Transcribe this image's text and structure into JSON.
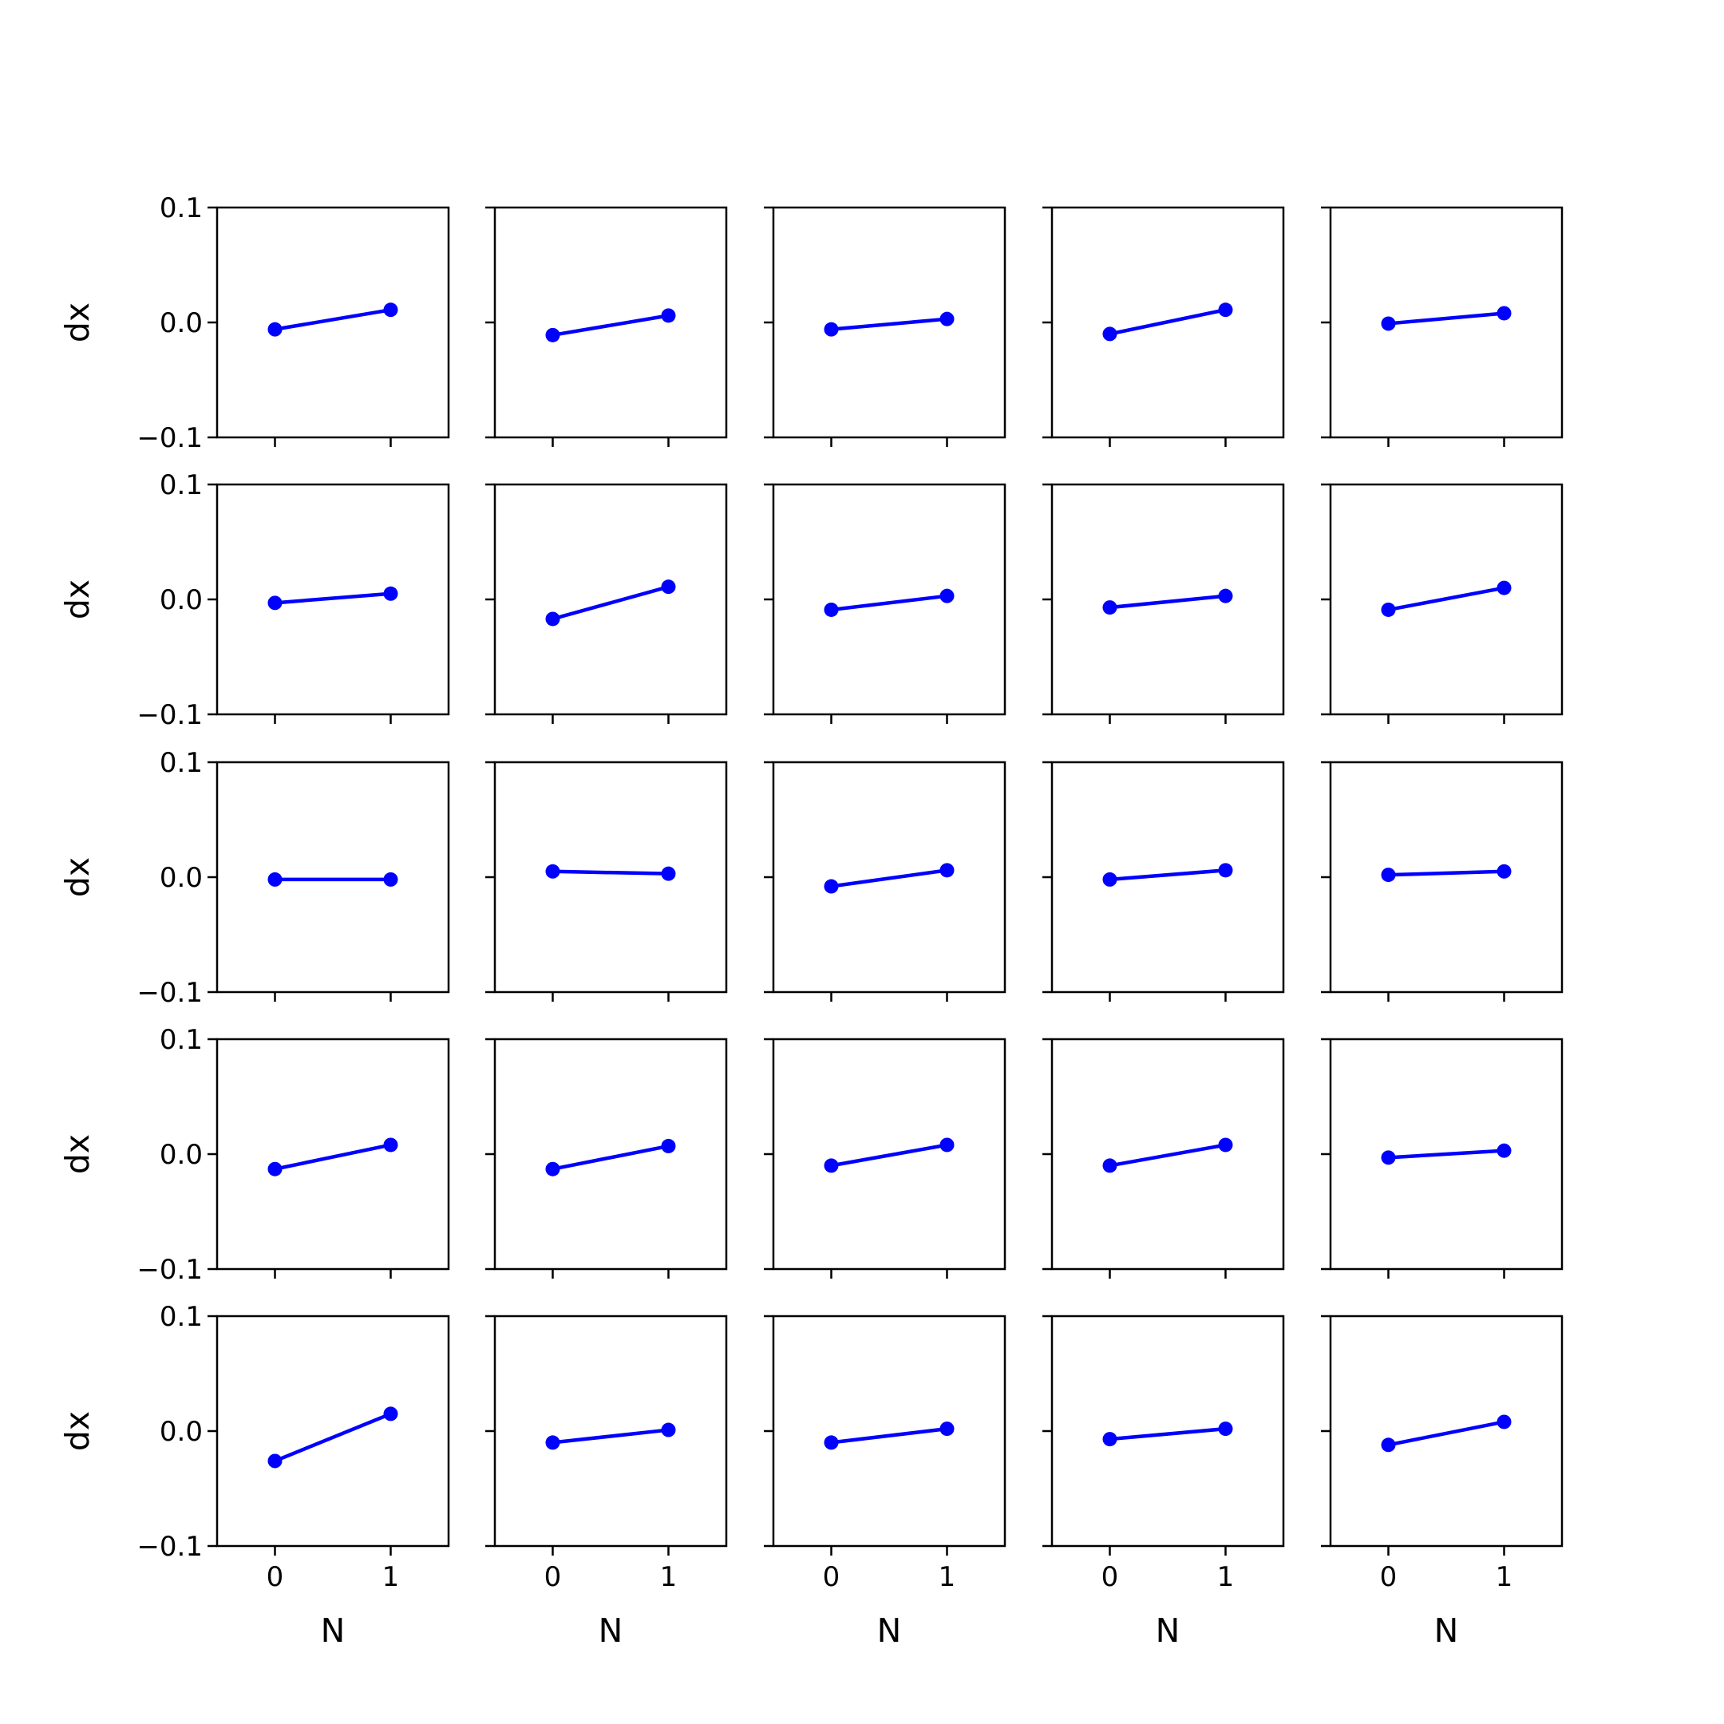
{
  "figure": {
    "rows": 5,
    "cols": 5,
    "series_color": "#0000ff"
  },
  "chart_data": [
    {
      "type": "line",
      "row": 0,
      "col": 0,
      "x": [
        0,
        1
      ],
      "y": [
        -0.006,
        0.011
      ],
      "xlabel": "",
      "ylabel": "dx",
      "xlim": [
        -0.5,
        1.5
      ],
      "ylim": [
        -0.1,
        0.1
      ],
      "xticks": [
        "0",
        "1"
      ],
      "yticks": [
        "0.1",
        "0.0",
        "−0.1"
      ]
    },
    {
      "type": "line",
      "row": 0,
      "col": 1,
      "x": [
        0,
        1
      ],
      "y": [
        -0.011,
        0.006
      ],
      "xlabel": "",
      "ylabel": "",
      "xlim": [
        -0.5,
        1.5
      ],
      "ylim": [
        -0.1,
        0.1
      ],
      "xticks": [
        "0",
        "1"
      ],
      "yticks": []
    },
    {
      "type": "line",
      "row": 0,
      "col": 2,
      "x": [
        0,
        1
      ],
      "y": [
        -0.006,
        0.003
      ],
      "xlabel": "",
      "ylabel": "",
      "xlim": [
        -0.5,
        1.5
      ],
      "ylim": [
        -0.1,
        0.1
      ],
      "xticks": [
        "0",
        "1"
      ],
      "yticks": []
    },
    {
      "type": "line",
      "row": 0,
      "col": 3,
      "x": [
        0,
        1
      ],
      "y": [
        -0.01,
        0.011
      ],
      "xlabel": "",
      "ylabel": "",
      "xlim": [
        -0.5,
        1.5
      ],
      "ylim": [
        -0.1,
        0.1
      ],
      "xticks": [
        "0",
        "1"
      ],
      "yticks": []
    },
    {
      "type": "line",
      "row": 0,
      "col": 4,
      "x": [
        0,
        1
      ],
      "y": [
        -0.001,
        0.008
      ],
      "xlabel": "",
      "ylabel": "",
      "xlim": [
        -0.5,
        1.5
      ],
      "ylim": [
        -0.1,
        0.1
      ],
      "xticks": [
        "0",
        "1"
      ],
      "yticks": []
    },
    {
      "type": "line",
      "row": 1,
      "col": 0,
      "x": [
        0,
        1
      ],
      "y": [
        -0.003,
        0.005
      ],
      "xlabel": "",
      "ylabel": "dx",
      "xlim": [
        -0.5,
        1.5
      ],
      "ylim": [
        -0.1,
        0.1
      ],
      "xticks": [
        "0",
        "1"
      ],
      "yticks": [
        "0.1",
        "0.0",
        "−0.1"
      ]
    },
    {
      "type": "line",
      "row": 1,
      "col": 1,
      "x": [
        0,
        1
      ],
      "y": [
        -0.017,
        0.011
      ],
      "xlabel": "",
      "ylabel": "",
      "xlim": [
        -0.5,
        1.5
      ],
      "ylim": [
        -0.1,
        0.1
      ],
      "xticks": [
        "0",
        "1"
      ],
      "yticks": []
    },
    {
      "type": "line",
      "row": 1,
      "col": 2,
      "x": [
        0,
        1
      ],
      "y": [
        -0.009,
        0.003
      ],
      "xlabel": "",
      "ylabel": "",
      "xlim": [
        -0.5,
        1.5
      ],
      "ylim": [
        -0.1,
        0.1
      ],
      "xticks": [
        "0",
        "1"
      ],
      "yticks": []
    },
    {
      "type": "line",
      "row": 1,
      "col": 3,
      "x": [
        0,
        1
      ],
      "y": [
        -0.007,
        0.003
      ],
      "xlabel": "",
      "ylabel": "",
      "xlim": [
        -0.5,
        1.5
      ],
      "ylim": [
        -0.1,
        0.1
      ],
      "xticks": [
        "0",
        "1"
      ],
      "yticks": []
    },
    {
      "type": "line",
      "row": 1,
      "col": 4,
      "x": [
        0,
        1
      ],
      "y": [
        -0.009,
        0.01
      ],
      "xlabel": "",
      "ylabel": "",
      "xlim": [
        -0.5,
        1.5
      ],
      "ylim": [
        -0.1,
        0.1
      ],
      "xticks": [
        "0",
        "1"
      ],
      "yticks": []
    },
    {
      "type": "line",
      "row": 2,
      "col": 0,
      "x": [
        0,
        1
      ],
      "y": [
        -0.002,
        -0.002
      ],
      "xlabel": "",
      "ylabel": "dx",
      "xlim": [
        -0.5,
        1.5
      ],
      "ylim": [
        -0.1,
        0.1
      ],
      "xticks": [
        "0",
        "1"
      ],
      "yticks": [
        "0.1",
        "0.0",
        "−0.1"
      ]
    },
    {
      "type": "line",
      "row": 2,
      "col": 1,
      "x": [
        0,
        1
      ],
      "y": [
        0.005,
        0.003
      ],
      "xlabel": "",
      "ylabel": "",
      "xlim": [
        -0.5,
        1.5
      ],
      "ylim": [
        -0.1,
        0.1
      ],
      "xticks": [
        "0",
        "1"
      ],
      "yticks": []
    },
    {
      "type": "line",
      "row": 2,
      "col": 2,
      "x": [
        0,
        1
      ],
      "y": [
        -0.008,
        0.006
      ],
      "xlabel": "",
      "ylabel": "",
      "xlim": [
        -0.5,
        1.5
      ],
      "ylim": [
        -0.1,
        0.1
      ],
      "xticks": [
        "0",
        "1"
      ],
      "yticks": []
    },
    {
      "type": "line",
      "row": 2,
      "col": 3,
      "x": [
        0,
        1
      ],
      "y": [
        -0.002,
        0.006
      ],
      "xlabel": "",
      "ylabel": "",
      "xlim": [
        -0.5,
        1.5
      ],
      "ylim": [
        -0.1,
        0.1
      ],
      "xticks": [
        "0",
        "1"
      ],
      "yticks": []
    },
    {
      "type": "line",
      "row": 2,
      "col": 4,
      "x": [
        0,
        1
      ],
      "y": [
        0.002,
        0.005
      ],
      "xlabel": "",
      "ylabel": "",
      "xlim": [
        -0.5,
        1.5
      ],
      "ylim": [
        -0.1,
        0.1
      ],
      "xticks": [
        "0",
        "1"
      ],
      "yticks": []
    },
    {
      "type": "line",
      "row": 3,
      "col": 0,
      "x": [
        0,
        1
      ],
      "y": [
        -0.013,
        0.008
      ],
      "xlabel": "",
      "ylabel": "dx",
      "xlim": [
        -0.5,
        1.5
      ],
      "ylim": [
        -0.1,
        0.1
      ],
      "xticks": [
        "0",
        "1"
      ],
      "yticks": [
        "0.1",
        "0.0",
        "−0.1"
      ]
    },
    {
      "type": "line",
      "row": 3,
      "col": 1,
      "x": [
        0,
        1
      ],
      "y": [
        -0.013,
        0.007
      ],
      "xlabel": "",
      "ylabel": "",
      "xlim": [
        -0.5,
        1.5
      ],
      "ylim": [
        -0.1,
        0.1
      ],
      "xticks": [
        "0",
        "1"
      ],
      "yticks": []
    },
    {
      "type": "line",
      "row": 3,
      "col": 2,
      "x": [
        0,
        1
      ],
      "y": [
        -0.01,
        0.008
      ],
      "xlabel": "",
      "ylabel": "",
      "xlim": [
        -0.5,
        1.5
      ],
      "ylim": [
        -0.1,
        0.1
      ],
      "xticks": [
        "0",
        "1"
      ],
      "yticks": []
    },
    {
      "type": "line",
      "row": 3,
      "col": 3,
      "x": [
        0,
        1
      ],
      "y": [
        -0.01,
        0.008
      ],
      "xlabel": "",
      "ylabel": "",
      "xlim": [
        -0.5,
        1.5
      ],
      "ylim": [
        -0.1,
        0.1
      ],
      "xticks": [
        "0",
        "1"
      ],
      "yticks": []
    },
    {
      "type": "line",
      "row": 3,
      "col": 4,
      "x": [
        0,
        1
      ],
      "y": [
        -0.003,
        0.003
      ],
      "xlabel": "",
      "ylabel": "",
      "xlim": [
        -0.5,
        1.5
      ],
      "ylim": [
        -0.1,
        0.1
      ],
      "xticks": [
        "0",
        "1"
      ],
      "yticks": []
    },
    {
      "type": "line",
      "row": 4,
      "col": 0,
      "x": [
        0,
        1
      ],
      "y": [
        -0.026,
        0.015
      ],
      "xlabel": "N",
      "ylabel": "dx",
      "xlim": [
        -0.5,
        1.5
      ],
      "ylim": [
        -0.1,
        0.1
      ],
      "xticks": [
        "0",
        "1"
      ],
      "yticks": [
        "0.1",
        "0.0",
        "−0.1"
      ]
    },
    {
      "type": "line",
      "row": 4,
      "col": 1,
      "x": [
        0,
        1
      ],
      "y": [
        -0.01,
        0.001
      ],
      "xlabel": "N",
      "ylabel": "",
      "xlim": [
        -0.5,
        1.5
      ],
      "ylim": [
        -0.1,
        0.1
      ],
      "xticks": [
        "0",
        "1"
      ],
      "yticks": []
    },
    {
      "type": "line",
      "row": 4,
      "col": 2,
      "x": [
        0,
        1
      ],
      "y": [
        -0.01,
        0.002
      ],
      "xlabel": "N",
      "ylabel": "",
      "xlim": [
        -0.5,
        1.5
      ],
      "ylim": [
        -0.1,
        0.1
      ],
      "xticks": [
        "0",
        "1"
      ],
      "yticks": []
    },
    {
      "type": "line",
      "row": 4,
      "col": 3,
      "x": [
        0,
        1
      ],
      "y": [
        -0.007,
        0.002
      ],
      "xlabel": "N",
      "ylabel": "",
      "xlim": [
        -0.5,
        1.5
      ],
      "ylim": [
        -0.1,
        0.1
      ],
      "xticks": [
        "0",
        "1"
      ],
      "yticks": []
    },
    {
      "type": "line",
      "row": 4,
      "col": 4,
      "x": [
        0,
        1
      ],
      "y": [
        -0.012,
        0.008
      ],
      "xlabel": "N",
      "ylabel": "",
      "xlim": [
        -0.5,
        1.5
      ],
      "ylim": [
        -0.1,
        0.1
      ],
      "xticks": [
        "0",
        "1"
      ],
      "yticks": []
    }
  ]
}
